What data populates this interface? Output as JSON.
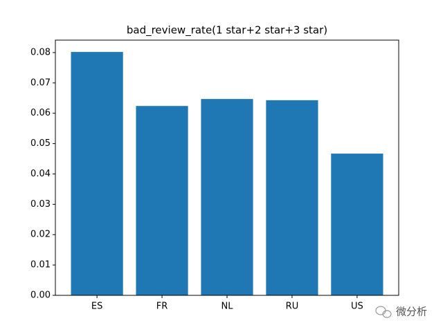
{
  "chart_data": {
    "type": "bar",
    "title": "bad_review_rate(1 star+2 star+3 star)",
    "categories": [
      "ES",
      "FR",
      "NL",
      "RU",
      "US"
    ],
    "values": [
      0.0802,
      0.0624,
      0.0647,
      0.0643,
      0.0467
    ],
    "color": "#1f77b4",
    "ylim": [
      0,
      0.0841
    ],
    "yticks": [
      {
        "value": 0,
        "label": "0.00"
      },
      0.01,
      0.02,
      0.03,
      0.04,
      0.05,
      0.06,
      0.07,
      0.08
    ],
    "grid": false
  },
  "watermark": "微分析"
}
